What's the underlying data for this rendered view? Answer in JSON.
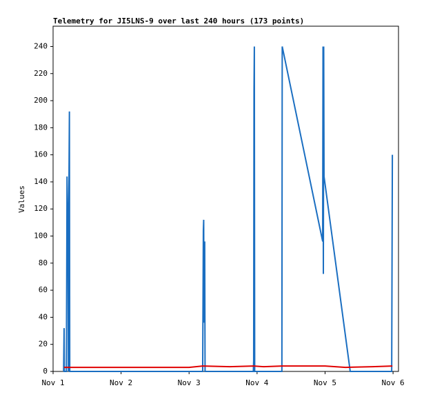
{
  "chart_data": {
    "type": "line",
    "title": "Telemetry for JI5LNS-9 over last 240 hours (173 points)",
    "y_label": "Values",
    "xlim": [
      0,
      5.08
    ],
    "xticks": [
      {
        "value": 0,
        "label": "Nov 1"
      },
      {
        "value": 1,
        "label": "Nov 2"
      },
      {
        "value": 2,
        "label": "Nov 3"
      },
      {
        "value": 3,
        "label": "Nov 4"
      },
      {
        "value": 4,
        "label": "Nov 5"
      },
      {
        "value": 5,
        "label": "Nov 6"
      }
    ],
    "ylim": [
      0,
      255
    ],
    "yticks": [
      0,
      20,
      40,
      60,
      80,
      100,
      120,
      140,
      160,
      180,
      200,
      220,
      240
    ],
    "series": [
      {
        "color": "#1a6ec1",
        "x": [
          0.155,
          0.162,
          0.165,
          0.195,
          0.2,
          0.205,
          0.21,
          0.215,
          0.22,
          0.225,
          0.23,
          0.24,
          0.245,
          2.2,
          2.21,
          2.215,
          2.22,
          2.23,
          2.235,
          2.945,
          2.95,
          2.955,
          2.96,
          2.965,
          3.365,
          3.37,
          3.965,
          3.97,
          3.975,
          3.98,
          3.985,
          4.37,
          4.98,
          4.985,
          4.99
        ],
        "values": [
          0,
          32,
          0,
          0,
          64,
          144,
          128,
          112,
          84,
          0,
          112,
          192,
          0,
          0,
          104,
          112,
          36,
          96,
          0,
          0,
          8,
          208,
          240,
          0,
          0,
          240,
          96,
          240,
          72,
          240,
          144,
          0,
          0,
          80,
          160
        ]
      },
      {
        "color": "#e00000",
        "x": [
          0.16,
          1,
          2,
          2.2,
          2.6,
          2.95,
          3.1,
          3.37,
          4,
          4.3,
          4.7,
          4.99
        ],
        "values": [
          3,
          3,
          3,
          4,
          3.5,
          4,
          3.5,
          4,
          4,
          3,
          3.5,
          4
        ]
      }
    ]
  }
}
